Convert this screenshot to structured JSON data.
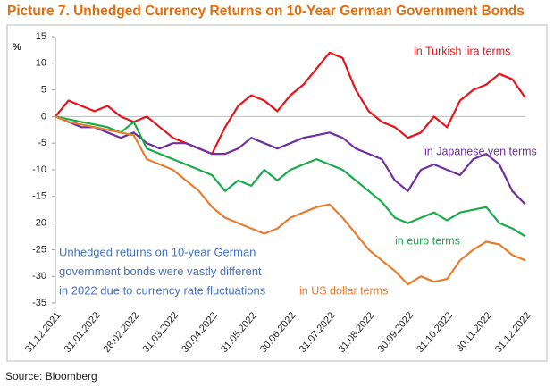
{
  "chart_data": {
    "type": "line",
    "title": "Picture 7. Unhedged Currency Returns on 10-Year German Government Bonds",
    "y_label": "%",
    "source": "Source: Bloomberg",
    "categories": [
      "31.12.2021",
      null,
      null,
      "31.01.2022",
      null,
      null,
      "28.02.2022",
      null,
      null,
      "31.03.2022",
      null,
      null,
      "30.04.2022",
      null,
      null,
      "31.05.2022",
      null,
      null,
      "30.06.2022",
      null,
      null,
      "31.07.2022",
      null,
      null,
      "31.08.2022",
      null,
      null,
      "30.09.2022",
      null,
      null,
      "31.10.2022",
      null,
      null,
      "30.11.2022",
      null,
      null,
      "31.12.2022"
    ],
    "series": [
      {
        "name": "in Turkish lira terms",
        "color": "#e8141b",
        "values": [
          0,
          3,
          2,
          1,
          2,
          0,
          -1,
          0,
          -2,
          -4,
          -5,
          -6,
          -7,
          -2,
          2,
          4,
          3,
          1,
          4,
          6,
          9,
          12,
          11,
          5,
          1,
          -1,
          -2,
          -4,
          -3,
          0,
          -2,
          3,
          5,
          6,
          8,
          7,
          3.5
        ]
      },
      {
        "name": "in Japanese yen terms",
        "color": "#7030a0",
        "values": [
          0,
          -1,
          -2,
          -2,
          -3,
          -4,
          -3,
          -5,
          -6,
          -5,
          -5,
          -6,
          -7,
          -7,
          -6,
          -4,
          -5,
          -6,
          -5,
          -4,
          -3.5,
          -3,
          -4,
          -6,
          -7,
          -8,
          -12,
          -14,
          -10,
          -9,
          -10,
          -11,
          -8,
          -7,
          -9,
          -14,
          -16.5
        ]
      },
      {
        "name": "in euro terms",
        "color": "#1aab4b",
        "values": [
          0,
          -0.5,
          -1,
          -1.5,
          -2,
          -3,
          -1,
          -6,
          -7,
          -8,
          -9,
          -10,
          -11,
          -14,
          -12,
          -13,
          -10,
          -12,
          -10,
          -9,
          -8,
          -9,
          -10,
          -12,
          -14,
          -16,
          -19,
          -20,
          -19,
          -18,
          -19.5,
          -18,
          -17.5,
          -17,
          -20,
          -21,
          -22.5
        ]
      },
      {
        "name": "in US dollar terms",
        "color": "#e87d2f",
        "values": [
          0,
          -1,
          -1.5,
          -2,
          -2.5,
          -3,
          -3.5,
          -8,
          -9,
          -10,
          -12,
          -14,
          -17,
          -19,
          -20,
          -21,
          -22,
          -21,
          -19,
          -18,
          -17,
          -16.5,
          -19,
          -22,
          -25,
          -27,
          -29,
          -31.5,
          -30,
          -31,
          -30.5,
          -27,
          -25,
          -23.5,
          -24,
          -26,
          -27
        ]
      }
    ],
    "annotation": [
      "Unhedged returns on 10-year German",
      "government bonds were vastly different",
      "in 2022  due to currency rate fluctuations"
    ],
    "annotation_color": "#4472c4",
    "ylim": [
      -35,
      15
    ],
    "yticks": [
      15,
      10,
      5,
      0,
      -5,
      -10,
      -15,
      -20,
      -25,
      -30,
      -35
    ],
    "grid": false
  }
}
